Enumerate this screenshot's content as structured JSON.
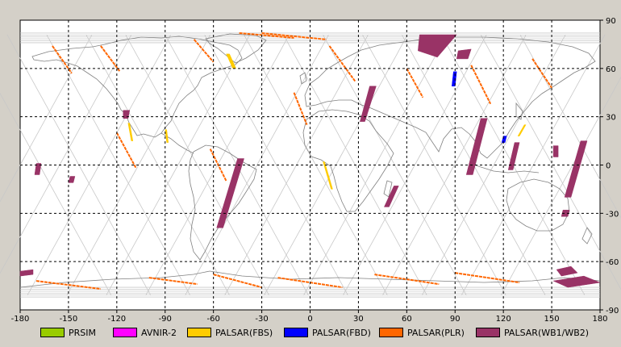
{
  "map": {
    "x_ticks": [
      "-180",
      "-150",
      "-120",
      "-90",
      "-60",
      "-30",
      "0",
      "30",
      "60",
      "90",
      "120",
      "150",
      "180"
    ],
    "y_ticks": [
      "90",
      "60",
      "30",
      "0",
      "-30",
      "-60",
      "-90"
    ],
    "xlim": [
      -180,
      180
    ],
    "ylim": [
      -90,
      90
    ],
    "grid": "dashed",
    "colors": {
      "ocean": "#ffffff",
      "coast": "#808080",
      "orbit": "#c8c8c8",
      "grid": "#000000",
      "background": "#d4d0c8"
    }
  },
  "legend": [
    {
      "label": "PRSIM",
      "color": "#99cc00"
    },
    {
      "label": "AVNIR-2",
      "color": "#ff00ff"
    },
    {
      "label": "PALSAR(FBS)",
      "color": "#ffcc00"
    },
    {
      "label": "PALSAR(FBD)",
      "color": "#0000ff"
    },
    {
      "label": "PALSAR(PLR)",
      "color": "#ff6600"
    },
    {
      "label": "PALSAR(WB1/WB2)",
      "color": "#993366"
    }
  ],
  "coverage": [
    {
      "sensor": "PALSAR(WB1/WB2)",
      "polygon": [
        [
          -170,
          1
        ],
        [
          -167,
          1
        ],
        [
          -168,
          -6
        ],
        [
          -171,
          -6
        ]
      ]
    },
    {
      "sensor": "PALSAR(WB1/WB2)",
      "polygon": [
        [
          -149,
          -7
        ],
        [
          -146,
          -7
        ],
        [
          -147,
          -11
        ],
        [
          -150,
          -11
        ]
      ]
    },
    {
      "sensor": "PALSAR(WB1/WB2)",
      "polygon": [
        [
          -116,
          34
        ],
        [
          -112,
          34
        ],
        [
          -113,
          29
        ],
        [
          -116,
          29
        ]
      ]
    },
    {
      "sensor": "PALSAR(WB1/WB2)",
      "polygon": [
        [
          -45,
          4
        ],
        [
          -41,
          4
        ],
        [
          -54,
          -39
        ],
        [
          -58,
          -39
        ]
      ]
    },
    {
      "sensor": "PALSAR(WB1/WB2)",
      "polygon": [
        [
          37,
          49
        ],
        [
          41,
          49
        ],
        [
          34,
          27
        ],
        [
          31,
          27
        ]
      ]
    },
    {
      "sensor": "PALSAR(WB1/WB2)",
      "polygon": [
        [
          52,
          -13
        ],
        [
          55,
          -13
        ],
        [
          49,
          -26
        ],
        [
          46,
          -26
        ]
      ]
    },
    {
      "sensor": "PALSAR(WB1/WB2)",
      "polygon": [
        [
          68,
          81
        ],
        [
          91,
          81
        ],
        [
          79,
          67
        ],
        [
          67,
          71
        ]
      ]
    },
    {
      "sensor": "PALSAR(WB1/WB2)",
      "polygon": [
        [
          92,
          71
        ],
        [
          100,
          72
        ],
        [
          98,
          66
        ],
        [
          91,
          66
        ]
      ]
    },
    {
      "sensor": "PALSAR(WB1/WB2)",
      "polygon": [
        [
          106,
          29
        ],
        [
          110,
          29
        ],
        [
          101,
          -6
        ],
        [
          97,
          -6
        ]
      ]
    },
    {
      "sensor": "PALSAR(WB1/WB2)",
      "polygon": [
        [
          127,
          14
        ],
        [
          130,
          14
        ],
        [
          126,
          -3
        ],
        [
          123,
          -3
        ]
      ]
    },
    {
      "sensor": "PALSAR(WB1/WB2)",
      "polygon": [
        [
          151,
          12
        ],
        [
          154,
          12
        ],
        [
          154,
          5
        ],
        [
          151,
          5
        ]
      ]
    },
    {
      "sensor": "PALSAR(WB1/WB2)",
      "polygon": [
        [
          168,
          15
        ],
        [
          172,
          15
        ],
        [
          162,
          -20
        ],
        [
          158,
          -20
        ]
      ]
    },
    {
      "sensor": "PALSAR(WB1/WB2)",
      "polygon": [
        [
          157,
          -28
        ],
        [
          161,
          -28
        ],
        [
          160,
          -32
        ],
        [
          156,
          -32
        ]
      ]
    },
    {
      "sensor": "PALSAR(WB1/WB2)",
      "polygon": [
        [
          153,
          -65
        ],
        [
          162,
          -63
        ],
        [
          166,
          -67
        ],
        [
          156,
          -69
        ]
      ]
    },
    {
      "sensor": "PALSAR(WB1/WB2)",
      "polygon": [
        [
          151,
          -72
        ],
        [
          170,
          -69
        ],
        [
          180,
          -73
        ],
        [
          160,
          -76
        ]
      ]
    },
    {
      "sensor": "PALSAR(WB1/WB2)",
      "polygon": [
        [
          -180,
          -66
        ],
        [
          -172,
          -65
        ],
        [
          -172,
          -68
        ],
        [
          -180,
          -69
        ]
      ]
    },
    {
      "sensor": "PALSAR(FBS)",
      "polygon": [
        [
          -52,
          69
        ],
        [
          -50,
          69
        ],
        [
          -46,
          60
        ],
        [
          -48,
          60
        ]
      ]
    },
    {
      "sensor": "PALSAR(FBS)",
      "polygon": [
        [
          -113,
          26
        ],
        [
          -112,
          26
        ],
        [
          -110,
          15
        ],
        [
          -111,
          15
        ]
      ]
    },
    {
      "sensor": "PALSAR(FBS)",
      "polygon": [
        [
          -90,
          22
        ],
        [
          -89,
          22
        ],
        [
          -88,
          14
        ],
        [
          -89,
          14
        ]
      ]
    },
    {
      "sensor": "PALSAR(FBS)",
      "polygon": [
        [
          8,
          2
        ],
        [
          9,
          2
        ],
        [
          14,
          -15
        ],
        [
          13,
          -15
        ]
      ]
    },
    {
      "sensor": "PALSAR(FBS)",
      "polygon": [
        [
          133,
          25
        ],
        [
          134,
          25
        ],
        [
          130,
          18
        ],
        [
          129,
          18
        ]
      ]
    },
    {
      "sensor": "PALSAR(FBD)",
      "polygon": [
        [
          89,
          58
        ],
        [
          91,
          58
        ],
        [
          90,
          49
        ],
        [
          88,
          49
        ]
      ]
    },
    {
      "sensor": "PALSAR(FBD)",
      "polygon": [
        [
          120,
          18
        ],
        [
          122,
          18
        ],
        [
          121,
          14
        ],
        [
          119,
          14
        ]
      ]
    }
  ],
  "plr_tracks": [
    {
      "start": [
        -160,
        74
      ],
      "end": [
        -148,
        57
      ]
    },
    {
      "start": [
        -130,
        74
      ],
      "end": [
        -118,
        58
      ]
    },
    {
      "start": [
        -72,
        78
      ],
      "end": [
        -60,
        64
      ]
    },
    {
      "start": [
        -120,
        20
      ],
      "end": [
        -108,
        -2
      ]
    },
    {
      "start": [
        -62,
        10
      ],
      "end": [
        -52,
        -10
      ]
    },
    {
      "start": [
        -10,
        45
      ],
      "end": [
        -2,
        25
      ]
    },
    {
      "start": [
        12,
        74
      ],
      "end": [
        28,
        52
      ]
    },
    {
      "start": [
        60,
        60
      ],
      "end": [
        70,
        42
      ]
    },
    {
      "start": [
        100,
        62
      ],
      "end": [
        112,
        38
      ]
    },
    {
      "start": [
        138,
        66
      ],
      "end": [
        150,
        48
      ]
    },
    {
      "start": [
        -44,
        82
      ],
      "end": [
        -10,
        79
      ]
    },
    {
      "start": [
        -30,
        82
      ],
      "end": [
        10,
        78
      ]
    },
    {
      "start": [
        -60,
        -68
      ],
      "end": [
        -30,
        -76
      ]
    },
    {
      "start": [
        -20,
        -70
      ],
      "end": [
        20,
        -76
      ]
    },
    {
      "start": [
        -170,
        -72
      ],
      "end": [
        -130,
        -77
      ]
    },
    {
      "start": [
        40,
        -68
      ],
      "end": [
        80,
        -74
      ]
    },
    {
      "start": [
        90,
        -67
      ],
      "end": [
        130,
        -73
      ]
    },
    {
      "start": [
        -100,
        -70
      ],
      "end": [
        -70,
        -74
      ]
    }
  ]
}
